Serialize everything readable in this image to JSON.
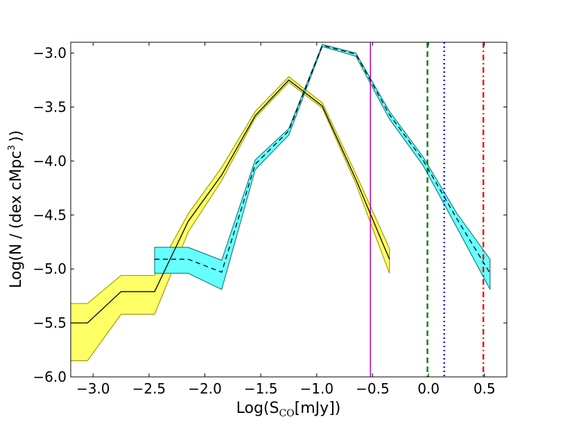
{
  "chart_data": {
    "type": "line",
    "title": "",
    "xlabel": {
      "main": "Log(S",
      "sub": "CO",
      "unit": "[mJy])"
    },
    "ylabel": {
      "main": "Log(N / (dex cMpc",
      "sup": "3",
      "tail": "))"
    },
    "xlim": [
      -3.2,
      0.7
    ],
    "ylim": [
      -6.0,
      -2.9
    ],
    "grid": false,
    "x_ticks": [
      -3.0,
      -2.5,
      -2.0,
      -1.5,
      -1.0,
      -0.5,
      0.0,
      0.5
    ],
    "x_tick_labels": [
      "−3.0",
      "−2.5",
      "−2.0",
      "−1.5",
      "−1.0",
      "−0.5",
      "0.0",
      "0.5"
    ],
    "y_ticks": [
      -6.0,
      -5.5,
      -5.0,
      -4.5,
      -4.0,
      -3.5,
      -3.0
    ],
    "y_tick_labels": [
      "−6.0",
      "−5.5",
      "−5.0",
      "−4.5",
      "−4.0",
      "−3.5",
      "−3.0"
    ],
    "series": [
      {
        "color": "#000000",
        "line_style": "solid",
        "band_fill": "#ffff66",
        "band_edge": "#a0a000",
        "x": [
          -3.3,
          -3.05,
          -2.75,
          -2.45,
          -2.15,
          -1.85,
          -1.55,
          -1.25,
          -0.95,
          -0.65,
          -0.35
        ],
        "y": [
          -5.5,
          -5.5,
          -5.21,
          -5.21,
          -4.56,
          -4.13,
          -3.58,
          -3.25,
          -3.49,
          -4.17,
          -4.91
        ],
        "upper": [
          -5.32,
          -5.32,
          -5.06,
          -5.06,
          -4.49,
          -4.06,
          -3.54,
          -3.22,
          -3.46,
          -4.12,
          -4.81
        ],
        "lower": [
          -5.85,
          -5.85,
          -5.42,
          -5.42,
          -4.66,
          -4.18,
          -3.6,
          -3.27,
          -3.51,
          -4.21,
          -5.04
        ]
      },
      {
        "color": "#000000",
        "line_style": "dashed",
        "band_fill": "#66ffff",
        "band_edge": "#208080",
        "x": [
          -2.45,
          -2.15,
          -1.85,
          -1.55,
          -1.25,
          -0.95,
          -0.65,
          -0.35,
          -0.05,
          0.25,
          0.55
        ],
        "y": [
          -4.91,
          -4.91,
          -5.03,
          -4.03,
          -3.72,
          -2.93,
          -3.01,
          -3.57,
          -3.99,
          -4.53,
          -5.04
        ],
        "upper": [
          -4.8,
          -4.8,
          -4.92,
          -3.99,
          -3.7,
          -2.92,
          -3.0,
          -3.54,
          -3.96,
          -4.48,
          -4.91
        ],
        "lower": [
          -5.04,
          -5.04,
          -5.19,
          -4.08,
          -3.76,
          -2.94,
          -3.03,
          -3.61,
          -4.04,
          -4.61,
          -5.19
        ]
      }
    ],
    "vertical_lines": [
      {
        "x": -0.52,
        "color": "#bf00bf",
        "style": "solid"
      },
      {
        "x": -0.01,
        "color": "#008000",
        "style": "dashed"
      },
      {
        "x": 0.14,
        "color": "#0000ff",
        "style": "dotted"
      },
      {
        "x": 0.49,
        "color": "#ff0000",
        "style": "dashdot"
      }
    ]
  }
}
